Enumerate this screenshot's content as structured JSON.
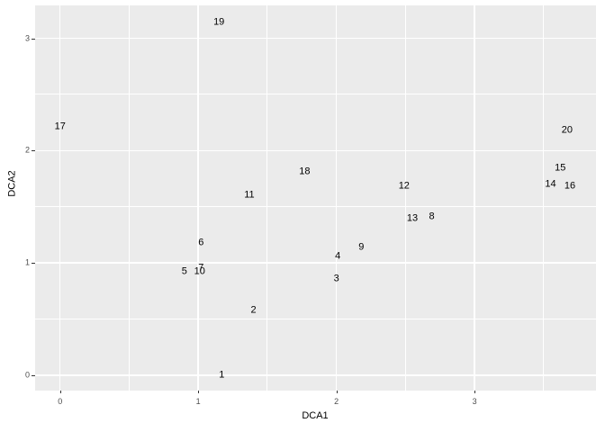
{
  "chart_data": {
    "type": "scatter",
    "title": "",
    "xlabel": "DCA1",
    "ylabel": "DCA2",
    "x_range": [
      -0.184,
      3.876
    ],
    "y_range": [
      -0.133,
      3.297
    ],
    "x_major_ticks": [
      0,
      1,
      2,
      3
    ],
    "x_minor_ticks": [
      0.5,
      1.5,
      2.5,
      3.5
    ],
    "y_major_ticks": [
      0,
      1,
      2,
      3
    ],
    "y_minor_ticks": [
      0.5,
      1.5,
      2.5
    ],
    "x_tick_labels": [
      "0",
      "1",
      "2",
      "3"
    ],
    "y_tick_labels": [
      "0",
      "1",
      "2",
      "3"
    ],
    "grid": "major and minor white gridlines on grey panel",
    "legend": "none",
    "points": [
      {
        "label": "1",
        "x": 1.17,
        "y": 0.0
      },
      {
        "label": "2",
        "x": 1.4,
        "y": 0.58
      },
      {
        "label": "3",
        "x": 2.0,
        "y": 0.86
      },
      {
        "label": "4",
        "x": 2.01,
        "y": 1.06
      },
      {
        "label": "5",
        "x": 0.9,
        "y": 0.92
      },
      {
        "label": "6",
        "x": 1.02,
        "y": 1.18
      },
      {
        "label": "7",
        "x": 1.02,
        "y": 0.95
      },
      {
        "label": "8",
        "x": 2.69,
        "y": 1.41
      },
      {
        "label": "9",
        "x": 2.18,
        "y": 1.14
      },
      {
        "label": "10",
        "x": 1.01,
        "y": 0.92
      },
      {
        "label": "11",
        "x": 1.37,
        "y": 1.6
      },
      {
        "label": "12",
        "x": 2.49,
        "y": 1.68
      },
      {
        "label": "13",
        "x": 2.55,
        "y": 1.39
      },
      {
        "label": "14",
        "x": 3.55,
        "y": 1.7
      },
      {
        "label": "15",
        "x": 3.62,
        "y": 1.84
      },
      {
        "label": "16",
        "x": 3.69,
        "y": 1.68
      },
      {
        "label": "17",
        "x": 0.0,
        "y": 2.21
      },
      {
        "label": "18",
        "x": 1.77,
        "y": 1.81
      },
      {
        "label": "19",
        "x": 1.15,
        "y": 3.14
      },
      {
        "label": "20",
        "x": 3.67,
        "y": 2.18
      }
    ],
    "colors": {
      "panel_bg": "#EBEBEB",
      "gridline": "#FFFFFF",
      "point_text": "#000000",
      "tick_text": "#4D4D4D",
      "axis_title_text": "#000000",
      "outer_bg": "#FFFFFF"
    }
  }
}
